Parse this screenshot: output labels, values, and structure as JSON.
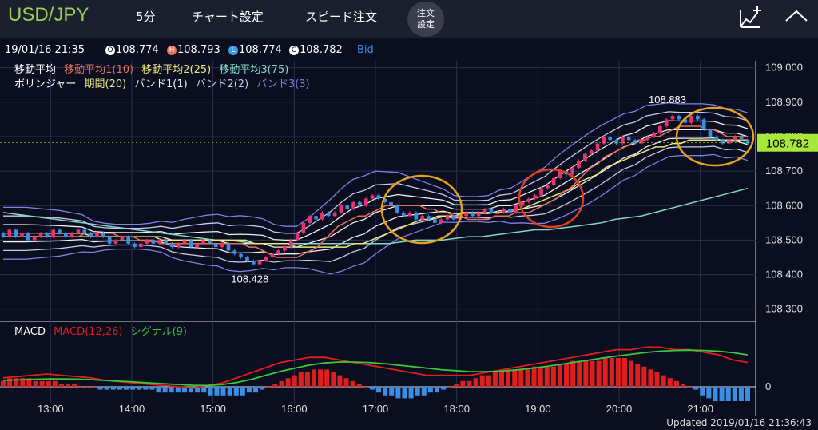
{
  "topbar": {
    "symbol": "USD/JPY",
    "timeframe": "5分",
    "chart_settings": "チャート設定",
    "speed_order": "スピード注文",
    "order_settings_line1": "注文",
    "order_settings_line2": "設定",
    "chart_icon": "chart-plus-icon",
    "collapse_icon": "chevron-up-icon"
  },
  "info": {
    "datetime": "19/01/16 21:35",
    "open_badge": "O",
    "open": "108.774",
    "high_badge": "H",
    "high": "108.793",
    "low_badge": "L",
    "low": "108.774",
    "close_badge": "C",
    "close": "108.782",
    "price_type": "Bid"
  },
  "indicators": {
    "ma_label": "移動平均",
    "ma1": "移動平均1(10)",
    "ma2": "移動平均2(25)",
    "ma3": "移動平均3(75)",
    "bb_label": "ボリンジャー",
    "bb_period": "期間(20)",
    "band1": "バンド1(1)",
    "band2": "バンド2(2)",
    "band3": "バンド3(3)",
    "macd_label": "MACD",
    "macd": "MACD(12,26)",
    "signal": "シグナル(9)"
  },
  "colors": {
    "up": "#e8336e",
    "down": "#3a8ee6",
    "ma1": "#e8705a",
    "ma2": "#f2e878",
    "ma3": "#7fd8c8",
    "band1": "#f0f0f0",
    "band2": "#c8c8f0",
    "band3": "#7f7fe8",
    "macd": "#e01e1e",
    "signal": "#3ac83a",
    "current": "#a8e83a",
    "circle": "#e6a41e",
    "circle_red": "#e0401e"
  },
  "current_price": "108.782",
  "footer": {
    "updated": "Updated 2019/01/16 21:36:43"
  },
  "chart_data": {
    "type": "candlestick",
    "y_ticks": [
      "109.000",
      "108.900",
      "108.800",
      "108.700",
      "108.600",
      "108.500",
      "108.400",
      "108.300"
    ],
    "ylim": [
      108.26,
      109.02
    ],
    "x_ticks": [
      "13:00",
      "14:00",
      "15:00",
      "16:00",
      "17:00",
      "18:00",
      "19:00",
      "20:00",
      "21:00"
    ],
    "time_range": [
      "12:25",
      "21:35"
    ],
    "high_annotation": "108.883",
    "low_annotation": "108.428",
    "candles_close": [
      108.51,
      108.53,
      108.51,
      108.52,
      108.5,
      108.51,
      108.52,
      108.51,
      108.53,
      108.52,
      108.51,
      108.52,
      108.53,
      108.52,
      108.51,
      108.52,
      108.51,
      108.49,
      108.5,
      108.51,
      108.49,
      108.48,
      108.49,
      108.5,
      108.49,
      108.5,
      108.49,
      108.48,
      108.49,
      108.5,
      108.48,
      108.49,
      108.5,
      108.49,
      108.48,
      108.49,
      108.47,
      108.46,
      108.45,
      108.44,
      108.43,
      108.44,
      108.45,
      108.46,
      108.47,
      108.48,
      108.5,
      108.52,
      108.55,
      108.57,
      108.56,
      108.58,
      108.57,
      108.58,
      108.6,
      108.59,
      108.61,
      108.6,
      108.62,
      108.63,
      108.62,
      108.61,
      108.6,
      108.58,
      108.57,
      108.58,
      108.56,
      108.57,
      108.56,
      108.55,
      108.56,
      108.57,
      108.56,
      108.57,
      108.58,
      108.57,
      108.58,
      108.59,
      108.58,
      108.58,
      108.59,
      108.58,
      108.6,
      108.61,
      108.62,
      108.63,
      108.65,
      108.66,
      108.68,
      108.7,
      108.69,
      108.71,
      108.73,
      108.75,
      108.76,
      108.78,
      108.8,
      108.79,
      108.78,
      108.8,
      108.79,
      108.78,
      108.79,
      108.8,
      108.81,
      108.83,
      108.85,
      108.86,
      108.85,
      108.84,
      108.86,
      108.85,
      108.82,
      108.8,
      108.79,
      108.78,
      108.79,
      108.8,
      108.79,
      108.78
    ],
    "candles_open": [
      108.52,
      108.51,
      108.53,
      108.51,
      108.52,
      108.5,
      108.51,
      108.52,
      108.51,
      108.53,
      108.52,
      108.51,
      108.52,
      108.53,
      108.52,
      108.51,
      108.52,
      108.51,
      108.49,
      108.5,
      108.51,
      108.49,
      108.48,
      108.49,
      108.5,
      108.49,
      108.5,
      108.49,
      108.48,
      108.49,
      108.5,
      108.48,
      108.49,
      108.5,
      108.49,
      108.48,
      108.49,
      108.47,
      108.46,
      108.45,
      108.44,
      108.43,
      108.44,
      108.45,
      108.46,
      108.47,
      108.48,
      108.5,
      108.52,
      108.55,
      108.57,
      108.56,
      108.58,
      108.57,
      108.58,
      108.6,
      108.59,
      108.61,
      108.6,
      108.62,
      108.63,
      108.62,
      108.61,
      108.6,
      108.58,
      108.57,
      108.58,
      108.56,
      108.57,
      108.56,
      108.55,
      108.56,
      108.57,
      108.56,
      108.57,
      108.58,
      108.57,
      108.58,
      108.59,
      108.58,
      108.58,
      108.59,
      108.58,
      108.6,
      108.61,
      108.62,
      108.63,
      108.65,
      108.66,
      108.68,
      108.7,
      108.69,
      108.71,
      108.73,
      108.75,
      108.76,
      108.78,
      108.8,
      108.79,
      108.78,
      108.8,
      108.79,
      108.78,
      108.79,
      108.8,
      108.81,
      108.83,
      108.85,
      108.86,
      108.85,
      108.84,
      108.86,
      108.85,
      108.82,
      108.8,
      108.79,
      108.78,
      108.79,
      108.8,
      108.79
    ],
    "ma1": [
      108.52,
      108.52,
      108.52,
      108.52,
      108.52,
      108.52,
      108.52,
      108.51,
      108.51,
      108.51,
      108.51,
      108.51,
      108.52,
      108.52,
      108.52,
      108.52,
      108.52,
      108.51,
      108.51,
      108.51,
      108.5,
      108.5,
      108.5,
      108.49,
      108.49,
      108.49,
      108.49,
      108.49,
      108.49,
      108.49,
      108.49,
      108.49,
      108.49,
      108.49,
      108.49,
      108.49,
      108.48,
      108.48,
      108.47,
      108.46,
      108.45,
      108.45,
      108.45,
      108.45,
      108.46,
      108.47,
      108.48,
      108.5,
      108.52,
      108.54,
      108.55,
      108.56,
      108.57,
      108.57,
      108.58,
      108.59,
      108.6,
      108.6,
      108.6,
      108.6,
      108.6,
      108.6,
      108.59,
      108.59,
      108.58,
      108.58,
      108.57,
      108.57,
      108.56,
      108.56,
      108.56,
      108.56,
      108.57,
      108.57,
      108.57,
      108.58,
      108.58,
      108.58,
      108.59,
      108.6,
      108.61,
      108.62,
      108.64,
      108.65,
      108.67,
      108.69,
      108.71,
      108.72,
      108.74,
      108.75,
      108.76,
      108.77,
      108.78,
      108.79,
      108.79,
      108.8,
      108.8,
      108.81,
      108.82,
      108.83,
      108.83,
      108.83,
      108.83,
      108.82,
      108.82,
      108.81,
      108.8,
      108.8,
      108.8,
      108.8
    ],
    "ma2": [
      108.51,
      108.51,
      108.51,
      108.51,
      108.51,
      108.51,
      108.51,
      108.51,
      108.51,
      108.51,
      108.51,
      108.51,
      108.51,
      108.51,
      108.51,
      108.51,
      108.51,
      108.51,
      108.51,
      108.5,
      108.5,
      108.5,
      108.5,
      108.5,
      108.5,
      108.5,
      108.5,
      108.5,
      108.5,
      108.5,
      108.49,
      108.49,
      108.49,
      108.49,
      108.49,
      108.48,
      108.48,
      108.48,
      108.48,
      108.48,
      108.48,
      108.48,
      108.49,
      108.49,
      108.5,
      108.51,
      108.52,
      108.53,
      108.54,
      108.55,
      108.56,
      108.56,
      108.57,
      108.57,
      108.57,
      108.58,
      108.58,
      108.58,
      108.58,
      108.58,
      108.58,
      108.59,
      108.59,
      108.6,
      108.61,
      108.62,
      108.63,
      108.64,
      108.65,
      108.67,
      108.68,
      108.69,
      108.71,
      108.72,
      108.73,
      108.74,
      108.75,
      108.76,
      108.77,
      108.77,
      108.78,
      108.78,
      108.79,
      108.79,
      108.79,
      108.79,
      108.79,
      108.79,
      108.79,
      108.79
    ],
    "ma3": [
      108.58,
      108.575,
      108.57,
      108.565,
      108.56,
      108.555,
      108.55,
      108.545,
      108.54,
      108.535,
      108.53,
      108.525,
      108.52,
      108.515,
      108.51,
      108.505,
      108.5,
      108.5,
      108.495,
      108.49,
      108.49,
      108.49,
      108.49,
      108.49,
      108.49,
      108.49,
      108.49,
      108.49,
      108.49,
      108.49,
      108.495,
      108.5,
      108.5,
      108.5,
      108.505,
      108.51,
      108.51,
      108.515,
      108.52,
      108.525,
      108.53,
      108.53,
      108.535,
      108.54,
      108.545,
      108.55,
      108.56,
      108.565,
      108.57,
      108.58,
      108.59,
      108.6,
      108.61,
      108.62,
      108.63,
      108.64,
      108.65
    ],
    "bb_mid": [
      108.52,
      108.52,
      108.52,
      108.52,
      108.52,
      108.52,
      108.52,
      108.52,
      108.51,
      108.51,
      108.51,
      108.51,
      108.51,
      108.51,
      108.51,
      108.5,
      108.5,
      108.5,
      108.5,
      108.5,
      108.49,
      108.49,
      108.49,
      108.49,
      108.48,
      108.48,
      108.48,
      108.49,
      108.5,
      108.51,
      108.53,
      108.55,
      108.56,
      108.58,
      108.59,
      108.6,
      108.6,
      108.6,
      108.6,
      108.6,
      108.59,
      108.59,
      108.59,
      108.59,
      108.6,
      108.6,
      108.61,
      108.62,
      108.63,
      108.65,
      108.67,
      108.69,
      108.71,
      108.73,
      108.75,
      108.77,
      108.78,
      108.8,
      108.81,
      108.82,
      108.82,
      108.82,
      108.82,
      108.82,
      108.81,
      108.81,
      108.8
    ],
    "bb_sigma": [
      0.025,
      0.025,
      0.025,
      0.024,
      0.023,
      0.022,
      0.02,
      0.018,
      0.015,
      0.013,
      0.012,
      0.012,
      0.012,
      0.013,
      0.015,
      0.017,
      0.02,
      0.022,
      0.024,
      0.025,
      0.026,
      0.027,
      0.026,
      0.024,
      0.022,
      0.02,
      0.02,
      0.024,
      0.03,
      0.036,
      0.04,
      0.042,
      0.042,
      0.04,
      0.036,
      0.032,
      0.028,
      0.024,
      0.02,
      0.016,
      0.013,
      0.012,
      0.012,
      0.013,
      0.015,
      0.017,
      0.02,
      0.024,
      0.027,
      0.03,
      0.032,
      0.033,
      0.034,
      0.034,
      0.033,
      0.032,
      0.031,
      0.03,
      0.028,
      0.026,
      0.025,
      0.025,
      0.025,
      0.024,
      0.024,
      0.023,
      0.023
    ],
    "macd_hist": [
      2,
      3,
      3,
      3,
      3,
      2,
      2,
      2,
      2,
      1,
      1,
      1,
      0,
      0,
      0,
      -1,
      -1,
      -1,
      -1,
      -1,
      -1,
      -1,
      -1,
      -1,
      -2,
      -2,
      -2,
      -2,
      -2,
      -2,
      -2,
      -2,
      -3,
      -3,
      -3,
      -3,
      -3,
      -3,
      -2,
      -2,
      -1,
      0,
      1,
      2,
      3,
      4,
      5,
      5,
      6,
      6,
      6,
      5,
      4,
      3,
      2,
      1,
      0,
      -1,
      -2,
      -3,
      -3,
      -4,
      -4,
      -4,
      -3,
      -3,
      -2,
      -2,
      -1,
      0,
      1,
      2,
      2,
      3,
      4,
      4,
      5,
      5,
      6,
      6,
      6,
      6,
      7,
      7,
      7,
      7,
      8,
      8,
      9,
      9,
      9,
      9,
      9,
      10,
      10,
      10,
      10,
      9,
      8,
      7,
      6,
      5,
      4,
      3,
      2,
      1,
      0,
      -1,
      -3,
      -4,
      -5,
      -5,
      -5,
      -5,
      -5,
      -5
    ],
    "macd_line": [
      1,
      1.5,
      2,
      2.5,
      2,
      1.5,
      1,
      0,
      -0.5,
      -1,
      -1.5,
      -2,
      -2.5,
      -3,
      -2,
      -1,
      1,
      3,
      5,
      7,
      8,
      9,
      9,
      8,
      7,
      6,
      5,
      4,
      3,
      2,
      2,
      2,
      2,
      3,
      4,
      5,
      6,
      7,
      8,
      9,
      10,
      11,
      12,
      12,
      13,
      13,
      12,
      12,
      11,
      10,
      8,
      7
    ],
    "signal_line": [
      0,
      0.2,
      0.4,
      0.6,
      0.6,
      0.5,
      0.3,
      0,
      -0.3,
      -0.6,
      -1,
      -1.3,
      -1.6,
      -1.9,
      -2,
      -1.6,
      -0.8,
      0.4,
      2,
      3.5,
      4.8,
      6,
      6.8,
      7.2,
      7.2,
      7,
      6.6,
      6,
      5.4,
      4.8,
      4.2,
      3.8,
      3.4,
      3.4,
      3.6,
      4,
      4.6,
      5.3,
      6.1,
      7,
      7.8,
      8.7,
      9.5,
      10.2,
      10.9,
      11.4,
      11.7,
      11.8,
      11.7,
      11.4,
      10.8,
      10
    ]
  }
}
